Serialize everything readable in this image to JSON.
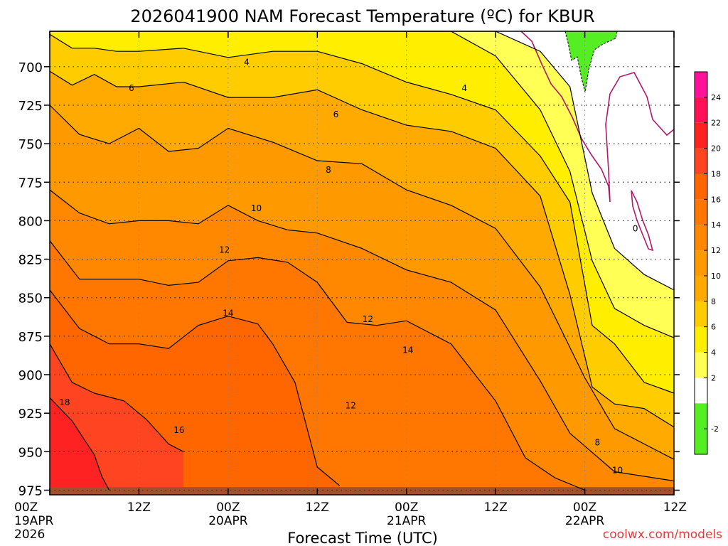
{
  "chart_data": {
    "type": "heatmap",
    "title": "2026041900 NAM Forecast Temperature (ºC) for KBUR",
    "xlabel": "Forecast Time (UTC)",
    "ylabel": "",
    "x_hours": [
      0,
      12,
      24,
      36,
      48,
      60,
      72,
      84
    ],
    "x_ticks": [
      {
        "hour": 0,
        "lines": [
          "00Z",
          "19APR",
          "2026"
        ]
      },
      {
        "hour": 12,
        "lines": [
          "12Z"
        ]
      },
      {
        "hour": 24,
        "lines": [
          "00Z",
          "20APR"
        ]
      },
      {
        "hour": 36,
        "lines": [
          "12Z"
        ]
      },
      {
        "hour": 48,
        "lines": [
          "00Z",
          "21APR"
        ]
      },
      {
        "hour": 60,
        "lines": [
          "12Z"
        ]
      },
      {
        "hour": 72,
        "lines": [
          "00Z",
          "22APR"
        ]
      },
      {
        "hour": 84,
        "lines": [
          "12Z"
        ]
      }
    ],
    "y_ticks": [
      700,
      725,
      750,
      775,
      800,
      825,
      850,
      875,
      900,
      925,
      950,
      975
    ],
    "y_label_texts": [
      "700",
      "725",
      "750",
      "775",
      "800",
      "825",
      "850",
      "875",
      "900",
      "925",
      "950",
      "975"
    ],
    "pressure_range": [
      677,
      978
    ],
    "surface_pressure": 973,
    "colorbar": {
      "levels": [
        -2,
        0,
        2,
        4,
        6,
        8,
        10,
        12,
        14,
        16,
        18,
        20,
        22,
        24
      ],
      "labels": [
        "-2",
        "2",
        "4",
        "6",
        "8",
        "10",
        "12",
        "14",
        "16",
        "18",
        "20",
        "22",
        "24"
      ],
      "colors": [
        "#55ee22",
        "#ffffff",
        "#ffff55",
        "#ffee00",
        "#ffcc00",
        "#ffaa00",
        "#ff9900",
        "#ff8800",
        "#ff7700",
        "#ff6600",
        "#ff4422",
        "#ff2222",
        "#ff1155",
        "#ff1199"
      ],
      "range": [
        -4,
        26
      ]
    },
    "series": [
      {
        "name": "2",
        "values": [
          [
            0,
            677
          ],
          [
            6,
            677
          ],
          [
            12,
            677
          ],
          [
            18,
            677
          ],
          [
            24,
            677
          ],
          [
            30,
            677
          ],
          [
            36,
            677
          ],
          [
            42,
            677
          ],
          [
            48,
            677
          ],
          [
            54,
            677
          ],
          [
            60,
            677
          ],
          [
            66,
            690
          ],
          [
            70,
            713
          ],
          [
            73,
            782
          ],
          [
            76,
            818
          ],
          [
            80,
            835
          ],
          [
            84,
            845
          ]
        ]
      },
      {
        "name": "4",
        "values": [
          [
            0,
            677
          ],
          [
            6,
            677
          ],
          [
            12,
            677
          ],
          [
            18,
            677
          ],
          [
            24,
            677
          ],
          [
            30,
            677
          ],
          [
            36,
            677
          ],
          [
            42,
            677
          ],
          [
            48,
            677
          ],
          [
            54,
            677
          ],
          [
            60,
            693
          ],
          [
            66,
            728
          ],
          [
            70,
            768
          ],
          [
            73,
            826
          ],
          [
            76,
            857
          ],
          [
            80,
            868
          ],
          [
            84,
            876
          ]
        ]
      },
      {
        "name": "6",
        "values": [
          [
            0,
            679
          ],
          [
            3,
            688
          ],
          [
            6,
            688
          ],
          [
            9,
            690
          ],
          [
            12,
            690
          ],
          [
            18,
            688
          ],
          [
            24,
            694
          ],
          [
            30,
            690
          ],
          [
            36,
            690
          ],
          [
            42,
            698
          ],
          [
            48,
            710
          ],
          [
            54,
            718
          ],
          [
            60,
            728
          ],
          [
            66,
            758
          ],
          [
            70,
            788
          ],
          [
            73,
            868
          ],
          [
            76,
            880
          ],
          [
            80,
            905
          ],
          [
            84,
            912
          ]
        ]
      },
      {
        "name": "8",
        "values": [
          [
            0,
            703
          ],
          [
            3,
            712
          ],
          [
            6,
            705
          ],
          [
            9,
            713
          ],
          [
            12,
            713
          ],
          [
            18,
            710
          ],
          [
            24,
            720
          ],
          [
            30,
            720
          ],
          [
            36,
            715
          ],
          [
            42,
            728
          ],
          [
            48,
            738
          ],
          [
            54,
            742
          ],
          [
            60,
            753
          ],
          [
            66,
            784
          ],
          [
            70,
            848
          ],
          [
            73,
            908
          ],
          [
            76,
            919
          ],
          [
            80,
            922
          ],
          [
            84,
            934
          ]
        ]
      },
      {
        "name": "10",
        "values": [
          [
            0,
            725
          ],
          [
            4,
            744
          ],
          [
            8,
            750
          ],
          [
            12,
            740
          ],
          [
            16,
            755
          ],
          [
            20,
            753
          ],
          [
            24,
            740
          ],
          [
            30,
            749
          ],
          [
            36,
            761
          ],
          [
            42,
            763
          ],
          [
            48,
            780
          ],
          [
            54,
            790
          ],
          [
            60,
            805
          ],
          [
            66,
            843
          ],
          [
            72,
            902
          ],
          [
            76,
            935
          ],
          [
            80,
            945
          ],
          [
            84,
            955
          ]
        ]
      },
      {
        "name": "12",
        "values": [
          [
            0,
            780
          ],
          [
            4,
            795
          ],
          [
            8,
            802
          ],
          [
            12,
            800
          ],
          [
            16,
            800
          ],
          [
            20,
            802
          ],
          [
            24,
            790
          ],
          [
            28,
            800
          ],
          [
            32,
            806
          ],
          [
            36,
            808
          ],
          [
            42,
            818
          ],
          [
            48,
            832
          ],
          [
            54,
            840
          ],
          [
            60,
            858
          ],
          [
            66,
            904
          ],
          [
            70,
            938
          ],
          [
            76,
            963
          ],
          [
            80,
            966
          ],
          [
            84,
            969
          ]
        ]
      },
      {
        "name": "14",
        "values": [
          [
            0,
            813
          ],
          [
            4,
            838
          ],
          [
            8,
            838
          ],
          [
            12,
            838
          ],
          [
            16,
            842
          ],
          [
            20,
            840
          ],
          [
            24,
            826
          ],
          [
            28,
            824
          ],
          [
            32,
            827
          ],
          [
            36,
            840
          ],
          [
            40,
            866
          ],
          [
            44,
            868
          ],
          [
            48,
            865
          ],
          [
            54,
            880
          ],
          [
            60,
            917
          ],
          [
            64,
            954
          ],
          [
            68,
            967
          ],
          [
            72,
            975
          ]
        ]
      },
      {
        "name": "16",
        "values": [
          [
            0,
            845
          ],
          [
            4,
            870
          ],
          [
            8,
            880
          ],
          [
            12,
            880
          ],
          [
            16,
            883
          ],
          [
            20,
            868
          ],
          [
            24,
            862
          ],
          [
            28,
            867
          ],
          [
            30,
            880
          ],
          [
            33,
            905
          ],
          [
            36,
            960
          ],
          [
            39,
            972
          ]
        ]
      },
      {
        "name": "18",
        "values": [
          [
            0,
            880
          ],
          [
            3,
            905
          ],
          [
            6,
            912
          ],
          [
            10,
            917
          ],
          [
            13,
            929
          ],
          [
            16,
            945
          ],
          [
            18,
            950
          ]
        ]
      },
      {
        "name": "20",
        "values": [
          [
            0,
            915
          ],
          [
            3,
            930
          ],
          [
            6,
            952
          ],
          [
            7,
            966
          ],
          [
            8,
            975
          ]
        ]
      }
    ],
    "contour_labels": [
      {
        "text": "4",
        "hour": 26.5,
        "pressure": 697
      },
      {
        "text": "4",
        "hour": 55.8,
        "pressure": 714
      },
      {
        "text": "6",
        "hour": 11,
        "pressure": 714
      },
      {
        "text": "6",
        "hour": 38.5,
        "pressure": 731
      },
      {
        "text": "8",
        "hour": 37.5,
        "pressure": 767
      },
      {
        "text": "10",
        "hour": 27.8,
        "pressure": 792
      },
      {
        "text": "12",
        "hour": 23.5,
        "pressure": 819
      },
      {
        "text": "14",
        "hour": 24,
        "pressure": 860
      },
      {
        "text": "12",
        "hour": 42.8,
        "pressure": 864
      },
      {
        "text": "14",
        "hour": 48.2,
        "pressure": 884
      },
      {
        "text": "12",
        "hour": 40.5,
        "pressure": 920
      },
      {
        "text": "18",
        "hour": 2,
        "pressure": 918
      },
      {
        "text": "16",
        "hour": 17.4,
        "pressure": 936
      },
      {
        "text": "8",
        "hour": 73.7,
        "pressure": 944
      },
      {
        "text": "10",
        "hour": 76.4,
        "pressure": 962
      },
      {
        "text": "0",
        "hour": 78.8,
        "pressure": 805
      }
    ]
  },
  "credit": "coolwx.com/models"
}
